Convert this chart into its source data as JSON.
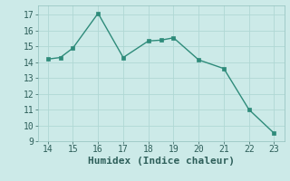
{
  "x": [
    14,
    14.5,
    15,
    16,
    17,
    18,
    18.5,
    19,
    20,
    21,
    22,
    23
  ],
  "y": [
    14.2,
    14.3,
    14.9,
    17.1,
    14.3,
    15.35,
    15.4,
    15.55,
    14.15,
    13.6,
    11.0,
    9.5
  ],
  "xlim": [
    13.6,
    23.4
  ],
  "ylim": [
    9,
    17.6
  ],
  "xticks": [
    14,
    15,
    16,
    17,
    18,
    19,
    20,
    21,
    22,
    23
  ],
  "yticks": [
    9,
    10,
    11,
    12,
    13,
    14,
    15,
    16,
    17
  ],
  "xlabel": "Humidex (Indice chaleur)",
  "line_color": "#2e8b7a",
  "marker_color": "#2e8b7a",
  "bg_color": "#cceae8",
  "grid_color": "#b0d8d4",
  "tick_fontsize": 7,
  "label_fontsize": 8
}
